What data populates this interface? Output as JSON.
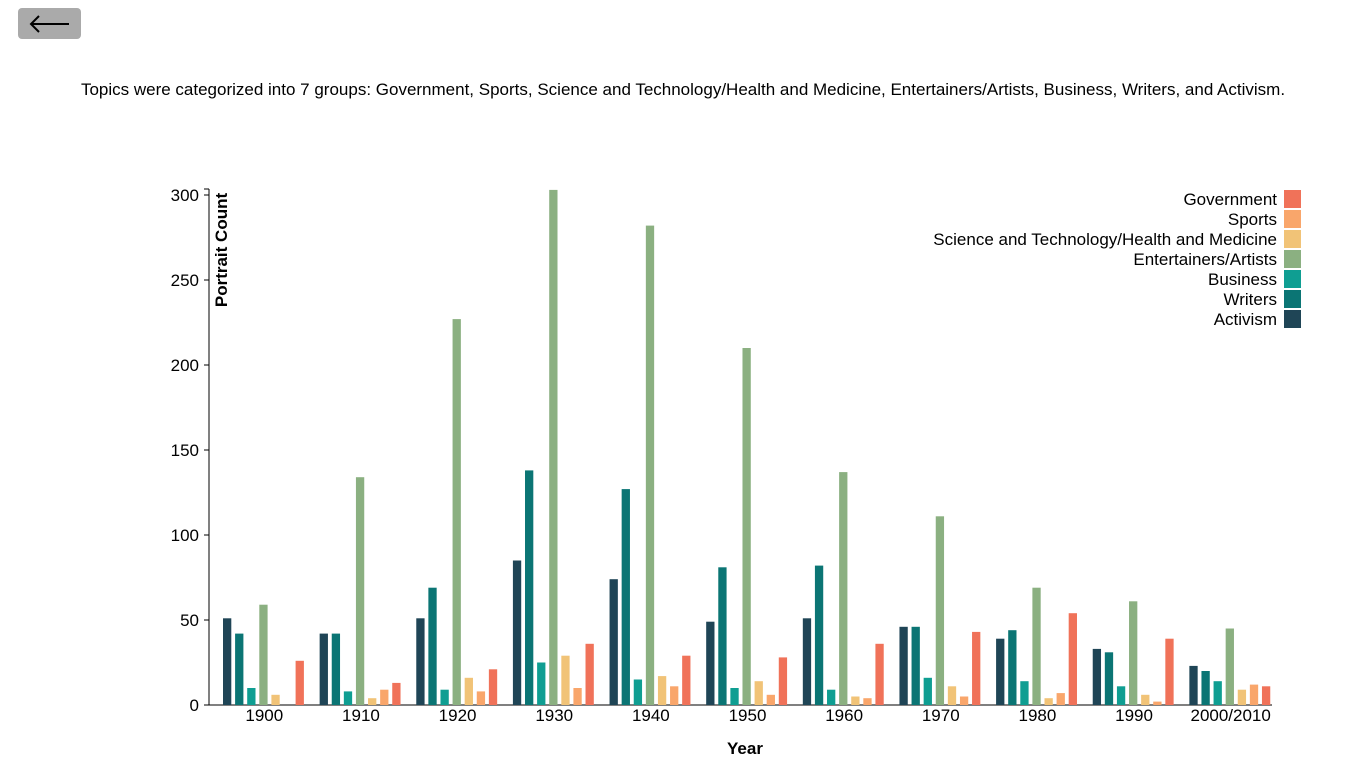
{
  "nav": {
    "back_icon": "arrow-left-icon"
  },
  "description": "Topics were categorized into 7 groups: Government, Sports, Science and Technology/Health and Medicine, Entertainers/Artists, Business, Writers, and Activism.",
  "chart_data": {
    "type": "bar",
    "xlabel": "Year",
    "ylabel": "Portrait Count",
    "ylim": [
      0,
      300
    ],
    "yticks": [
      0,
      50,
      100,
      150,
      200,
      250,
      300
    ],
    "grid": false,
    "legend_position": "top-right",
    "categories": [
      "1900",
      "1910",
      "1920",
      "1930",
      "1940",
      "1950",
      "1960",
      "1970",
      "1980",
      "1990",
      "2000/2010"
    ],
    "series": [
      {
        "name": "Activism",
        "color": "#1f4556",
        "values": [
          51,
          42,
          51,
          85,
          74,
          49,
          51,
          46,
          39,
          33,
          23
        ]
      },
      {
        "name": "Writers",
        "color": "#0b7574",
        "values": [
          42,
          42,
          69,
          138,
          127,
          81,
          82,
          46,
          44,
          31,
          20
        ]
      },
      {
        "name": "Business",
        "color": "#0f9e92",
        "values": [
          10,
          8,
          9,
          25,
          15,
          10,
          9,
          16,
          14,
          11,
          14
        ]
      },
      {
        "name": "Entertainers/Artists",
        "color": "#8bb081",
        "values": [
          59,
          134,
          227,
          303,
          282,
          210,
          137,
          111,
          69,
          61,
          45
        ]
      },
      {
        "name": "Science and Technology/Health and Medicine",
        "color": "#f1c377",
        "values": [
          6,
          4,
          16,
          29,
          17,
          14,
          5,
          11,
          4,
          6,
          9
        ]
      },
      {
        "name": "Sports",
        "color": "#f9a66b",
        "values": [
          0,
          9,
          8,
          10,
          11,
          6,
          4,
          5,
          7,
          2,
          12
        ]
      },
      {
        "name": "Government",
        "color": "#f07259",
        "values": [
          26,
          13,
          21,
          36,
          29,
          28,
          36,
          43,
          54,
          39,
          11
        ]
      }
    ],
    "legend_order": [
      "Government",
      "Sports",
      "Science and Technology/Health and Medicine",
      "Entertainers/Artists",
      "Business",
      "Writers",
      "Activism"
    ]
  }
}
